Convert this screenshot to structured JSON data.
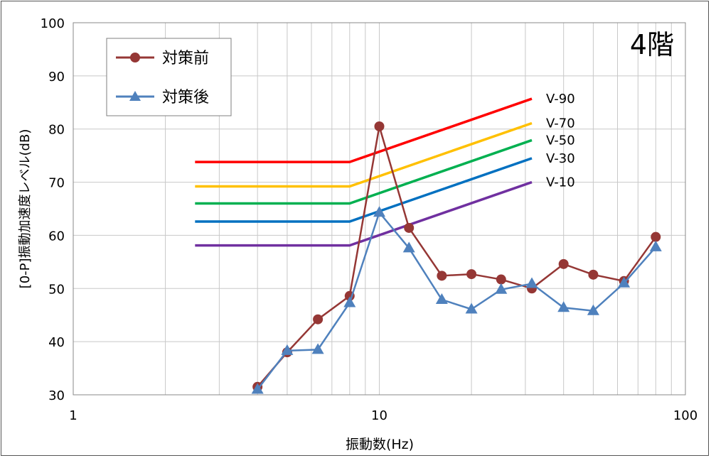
{
  "chart_data": {
    "type": "line",
    "annotation": "4階",
    "xlabel": "振動数(Hz)",
    "ylabel": "[0-P]振動加速度レベル(dB)",
    "x_scale": "log",
    "xlim": [
      1,
      100
    ],
    "ylim": [
      30,
      100
    ],
    "x_ticks": [
      1,
      10,
      100
    ],
    "x_tick_labels": [
      "1",
      "10",
      "100"
    ],
    "y_ticks": [
      30,
      40,
      50,
      60,
      70,
      80,
      90,
      100
    ],
    "y_tick_labels": [
      "30",
      "40",
      "50",
      "60",
      "70",
      "80",
      "90",
      "100"
    ],
    "grid": true,
    "legend_position": "top-left",
    "series": [
      {
        "name": "対策前",
        "color": "#953735",
        "marker": "circle",
        "x": [
          4,
          5,
          6.3,
          8,
          10,
          12.5,
          16,
          20,
          25,
          31.5,
          40,
          50,
          63,
          80
        ],
        "y": [
          31.5,
          38.0,
          44.2,
          48.6,
          80.5,
          61.4,
          52.4,
          52.7,
          51.7,
          50.0,
          54.6,
          52.6,
          51.4,
          59.7
        ]
      },
      {
        "name": "対策後",
        "color": "#4f81bd",
        "marker": "triangle",
        "x": [
          4,
          5,
          6.3,
          8,
          10,
          12.5,
          16,
          20,
          25,
          31.5,
          40,
          50,
          63,
          80
        ],
        "y": [
          31.0,
          38.3,
          38.5,
          47.3,
          64.3,
          57.6,
          47.9,
          46.1,
          49.8,
          50.9,
          46.4,
          45.8,
          51.0,
          57.8
        ]
      }
    ],
    "reference_lines": [
      {
        "label": "V-90",
        "color": "#ff0000",
        "x": [
          2.5,
          8,
          31.5
        ],
        "y": [
          73.8,
          73.8,
          85.7
        ]
      },
      {
        "label": "V-70",
        "color": "#ffc000",
        "x": [
          2.5,
          8,
          31.5
        ],
        "y": [
          69.2,
          69.2,
          81.1
        ]
      },
      {
        "label": "V-50",
        "color": "#00b050",
        "x": [
          2.5,
          8,
          31.5
        ],
        "y": [
          66.0,
          66.0,
          77.9
        ]
      },
      {
        "label": "V-30",
        "color": "#0070c0",
        "x": [
          2.5,
          8,
          31.5
        ],
        "y": [
          62.6,
          62.6,
          74.5
        ]
      },
      {
        "label": "V-10",
        "color": "#7030a0",
        "x": [
          2.5,
          8,
          31.5
        ],
        "y": [
          58.1,
          58.1,
          70.0
        ]
      }
    ]
  }
}
